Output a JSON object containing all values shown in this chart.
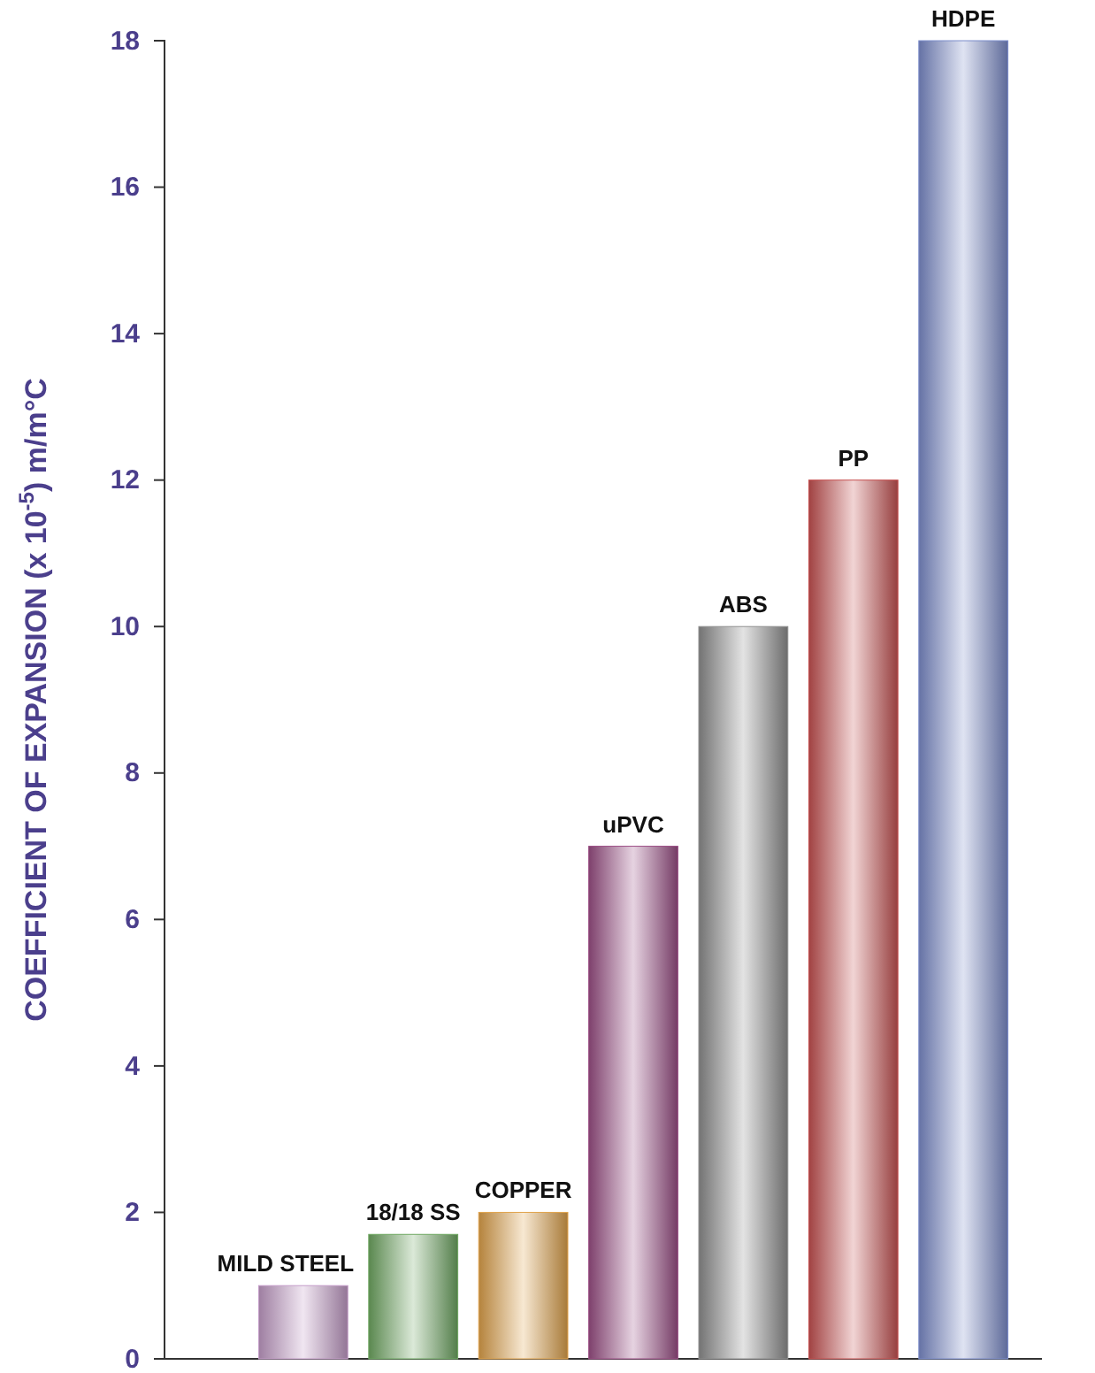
{
  "chart_data": {
    "type": "bar",
    "ylabel": "COEFFICIENT OF EXPANSION (x 10$^{-5}$) m/m°C",
    "categories": [
      "MILD STEEL",
      "18/18 SS",
      "COPPER",
      "uPVC",
      "ABS",
      "PP",
      "HDPE"
    ],
    "values": [
      1,
      1.7,
      2,
      7,
      10,
      12,
      18
    ],
    "colors": [
      "#c49cc8",
      "#6fa862",
      "#e0a24a",
      "#9c4f86",
      "#8f8f8f",
      "#c85252",
      "#7d8dcc"
    ],
    "ylim": [
      0,
      18
    ],
    "yticks": [
      0,
      2,
      4,
      6,
      8,
      10,
      12,
      14,
      16,
      18
    ],
    "grid": false
  }
}
